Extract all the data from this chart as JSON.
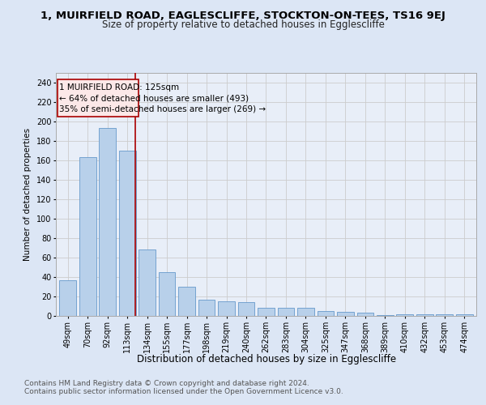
{
  "title": "1, MUIRFIELD ROAD, EAGLESCLIFFE, STOCKTON-ON-TEES, TS16 9EJ",
  "subtitle": "Size of property relative to detached houses in Egglescliffe",
  "xlabel": "Distribution of detached houses by size in Egglescliffe",
  "ylabel": "Number of detached properties",
  "categories": [
    "49sqm",
    "70sqm",
    "92sqm",
    "113sqm",
    "134sqm",
    "155sqm",
    "177sqm",
    "198sqm",
    "219sqm",
    "240sqm",
    "262sqm",
    "283sqm",
    "304sqm",
    "325sqm",
    "347sqm",
    "368sqm",
    "389sqm",
    "410sqm",
    "432sqm",
    "453sqm",
    "474sqm"
  ],
  "values": [
    37,
    163,
    193,
    170,
    68,
    45,
    30,
    17,
    15,
    14,
    8,
    8,
    8,
    5,
    4,
    3,
    1,
    2,
    2,
    2,
    2
  ],
  "bar_color": "#b8d0ea",
  "bar_edge_color": "#6699cc",
  "property_line_label": "1 MUIRFIELD ROAD: 125sqm",
  "annotation_line1": "← 64% of detached houses are smaller (493)",
  "annotation_line2": "35% of semi-detached houses are larger (269) →",
  "vline_color": "#aa0000",
  "ylim": [
    0,
    250
  ],
  "yticks": [
    0,
    20,
    40,
    60,
    80,
    100,
    120,
    140,
    160,
    180,
    200,
    220,
    240
  ],
  "grid_color": "#cccccc",
  "bg_color": "#dce6f5",
  "plot_bg_color": "#e8eef8",
  "footer_line1": "Contains HM Land Registry data © Crown copyright and database right 2024.",
  "footer_line2": "Contains public sector information licensed under the Open Government Licence v3.0.",
  "title_fontsize": 9.5,
  "subtitle_fontsize": 8.5,
  "xlabel_fontsize": 8.5,
  "ylabel_fontsize": 7.5,
  "tick_fontsize": 7,
  "annot_fontsize": 7.5,
  "footer_fontsize": 6.5
}
